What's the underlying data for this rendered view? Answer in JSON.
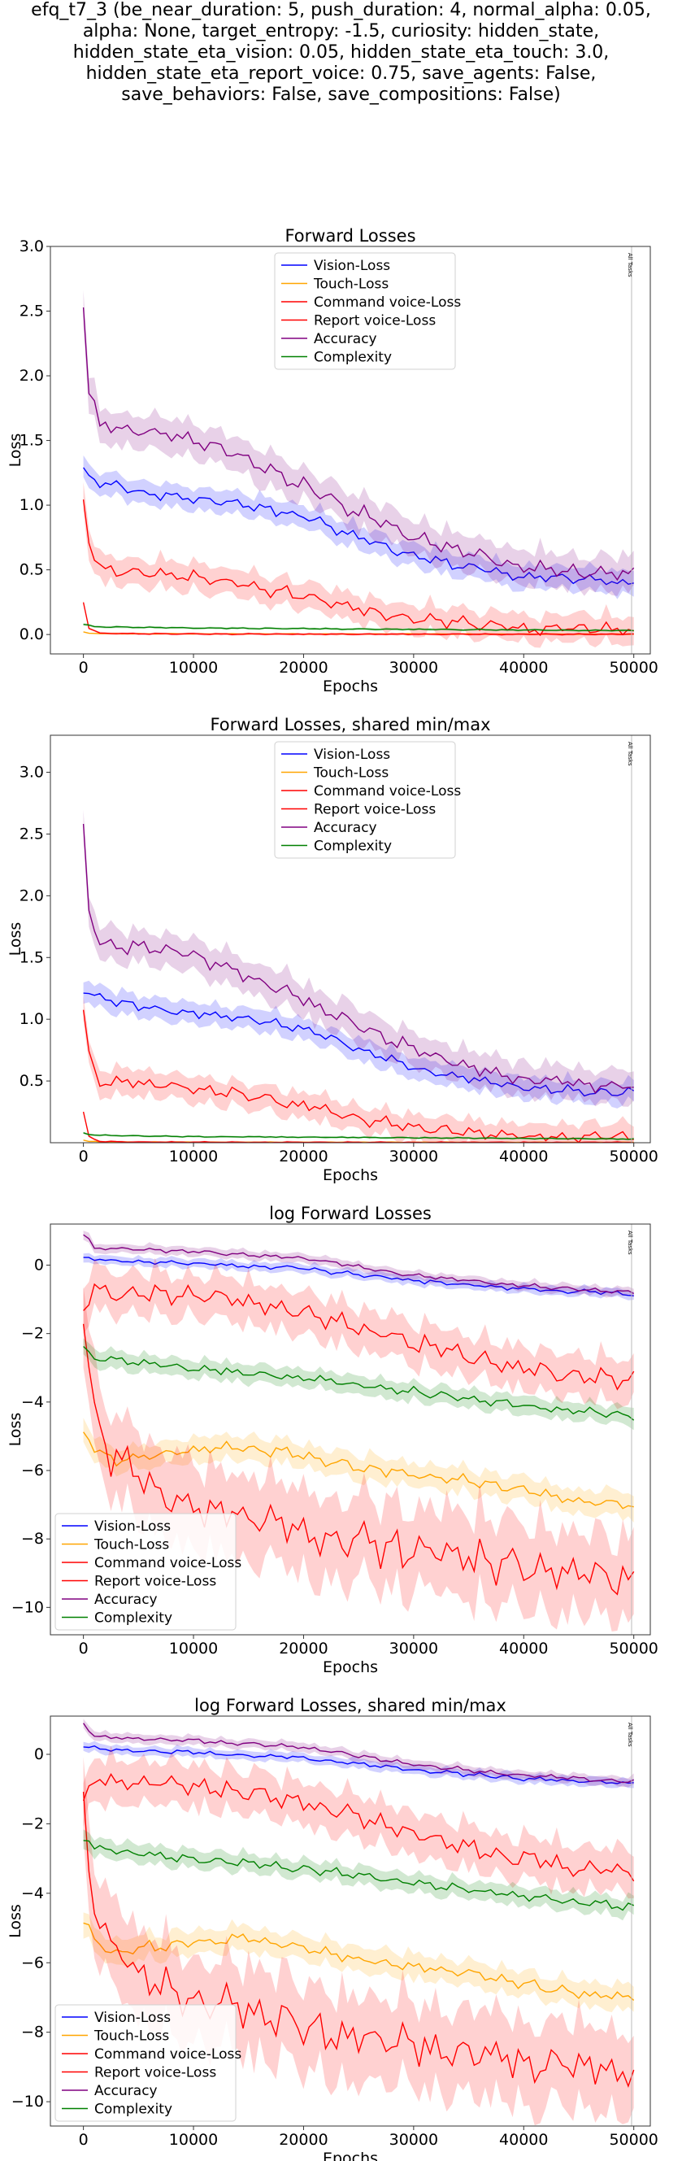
{
  "suptitle_lines": [
    "efq_t7_3 (be_near_duration: 5, push_duration: 4, normal_alpha: 0.05,",
    "alpha: None, target_entropy: -1.5, curiosity: hidden_state,",
    "hidden_state_eta_vision: 0.05, hidden_state_eta_touch: 3.0,",
    "hidden_state_eta_report_voice: 0.75, save_agents: False,",
    "save_behaviors: False, save_compositions: False)"
  ],
  "series_colors": {
    "Vision-Loss": "#0000ff",
    "Touch-Loss": "#ffa500",
    "Command voice-Loss": "#ff0000",
    "Report voice-Loss": "#ff0000",
    "Accuracy": "#800080",
    "Complexity": "#008000"
  },
  "chart_data": [
    {
      "type": "line",
      "title": "Forward Losses",
      "xlabel": "Epochs",
      "ylabel": "Loss",
      "xlim": [
        -3000,
        51500
      ],
      "ylim": [
        -0.15,
        3.0
      ],
      "xticks": [
        0,
        10000,
        20000,
        30000,
        40000,
        50000
      ],
      "yticks": [
        0.0,
        0.5,
        1.0,
        1.5,
        2.0,
        2.5,
        3.0
      ],
      "ytick_format": 1,
      "grid": false,
      "legend": "upper center",
      "vline": {
        "x": 49800,
        "label": "All Tasks"
      },
      "series": [
        {
          "name": "Vision-Loss",
          "x": [
            0,
            1000,
            5000,
            10000,
            15000,
            20000,
            25000,
            30000,
            35000,
            40000,
            45000,
            50000
          ],
          "values": [
            1.25,
            1.2,
            1.1,
            1.05,
            1.0,
            0.92,
            0.75,
            0.6,
            0.52,
            0.45,
            0.42,
            0.4
          ],
          "band": 0.1
        },
        {
          "name": "Touch-Loss",
          "x": [
            0,
            500,
            2000,
            10000,
            20000,
            30000,
            40000,
            50000
          ],
          "values": [
            0.02,
            0.01,
            0.006,
            0.005,
            0.004,
            0.004,
            0.003,
            0.003
          ],
          "band": 0.005
        },
        {
          "name": "Command voice-Loss",
          "x": [
            0,
            500,
            1500,
            5000,
            10000,
            15000,
            20000,
            25000,
            30000,
            35000,
            40000,
            45000,
            50000
          ],
          "values": [
            1.05,
            0.7,
            0.5,
            0.48,
            0.45,
            0.38,
            0.3,
            0.2,
            0.12,
            0.08,
            0.05,
            0.05,
            0.04
          ],
          "band": 0.12
        },
        {
          "name": "Report voice-Loss",
          "x": [
            0,
            500,
            1500,
            5000,
            20000,
            50000
          ],
          "values": [
            0.25,
            0.05,
            0.01,
            0.005,
            0.003,
            0.002
          ],
          "band": 0.01
        },
        {
          "name": "Accuracy",
          "x": [
            0,
            500,
            1500,
            5000,
            10000,
            15000,
            20000,
            25000,
            30000,
            35000,
            40000,
            45000,
            50000
          ],
          "values": [
            2.55,
            1.9,
            1.62,
            1.58,
            1.52,
            1.35,
            1.15,
            0.95,
            0.75,
            0.62,
            0.52,
            0.48,
            0.45
          ],
          "band": 0.15
        },
        {
          "name": "Complexity",
          "x": [
            0,
            1000,
            5000,
            10000,
            20000,
            30000,
            40000,
            50000
          ],
          "values": [
            0.08,
            0.06,
            0.055,
            0.05,
            0.045,
            0.04,
            0.035,
            0.03
          ],
          "band": 0.01
        }
      ]
    },
    {
      "type": "line",
      "title": "Forward Losses, shared min/max",
      "xlabel": "Epochs",
      "ylabel": "Loss",
      "xlim": [
        -3000,
        51500
      ],
      "ylim": [
        0.0,
        3.3
      ],
      "xticks": [
        0,
        10000,
        20000,
        30000,
        40000,
        50000
      ],
      "yticks": [
        0.5,
        1.0,
        1.5,
        2.0,
        2.5,
        3.0
      ],
      "ytick_format": 1,
      "grid": false,
      "legend": "upper center",
      "vline": {
        "x": 49800,
        "label": "All Tasks"
      },
      "series": [
        {
          "name": "Vision-Loss",
          "x": [
            0,
            1000,
            5000,
            10000,
            15000,
            20000,
            25000,
            30000,
            35000,
            40000,
            45000,
            50000
          ],
          "values": [
            1.25,
            1.2,
            1.1,
            1.05,
            1.0,
            0.92,
            0.75,
            0.6,
            0.52,
            0.45,
            0.42,
            0.4
          ],
          "band": 0.1
        },
        {
          "name": "Touch-Loss",
          "x": [
            0,
            500,
            2000,
            10000,
            20000,
            30000,
            40000,
            50000
          ],
          "values": [
            0.02,
            0.01,
            0.006,
            0.005,
            0.004,
            0.004,
            0.003,
            0.003
          ],
          "band": 0.005
        },
        {
          "name": "Command voice-Loss",
          "x": [
            0,
            500,
            1500,
            5000,
            10000,
            15000,
            20000,
            25000,
            30000,
            35000,
            40000,
            45000,
            50000
          ],
          "values": [
            1.05,
            0.7,
            0.5,
            0.48,
            0.45,
            0.38,
            0.3,
            0.2,
            0.12,
            0.08,
            0.05,
            0.05,
            0.04
          ],
          "band": 0.12
        },
        {
          "name": "Report voice-Loss",
          "x": [
            0,
            500,
            1500,
            5000,
            20000,
            50000
          ],
          "values": [
            0.25,
            0.05,
            0.01,
            0.005,
            0.003,
            0.002
          ],
          "band": 0.01
        },
        {
          "name": "Accuracy",
          "x": [
            0,
            500,
            1500,
            5000,
            10000,
            15000,
            20000,
            25000,
            30000,
            35000,
            40000,
            45000,
            50000
          ],
          "values": [
            2.55,
            1.9,
            1.62,
            1.58,
            1.52,
            1.35,
            1.15,
            0.95,
            0.75,
            0.62,
            0.52,
            0.48,
            0.45
          ],
          "band": 0.15
        },
        {
          "name": "Complexity",
          "x": [
            0,
            1000,
            5000,
            10000,
            20000,
            30000,
            40000,
            50000
          ],
          "values": [
            0.08,
            0.06,
            0.055,
            0.05,
            0.045,
            0.04,
            0.035,
            0.03
          ],
          "band": 0.01
        }
      ]
    },
    {
      "type": "line",
      "title": "log Forward Losses",
      "xlabel": "Epochs",
      "ylabel": "Loss",
      "xlim": [
        -3000,
        51500
      ],
      "ylim": [
        -10.8,
        1.2
      ],
      "xticks": [
        0,
        10000,
        20000,
        30000,
        40000,
        50000
      ],
      "yticks": [
        -10,
        -8,
        -6,
        -4,
        -2,
        0
      ],
      "ytick_format": 0,
      "grid": false,
      "legend": "lower left",
      "vline": {
        "x": 49800,
        "label": "All Tasks"
      },
      "series": [
        {
          "name": "Vision-Loss",
          "x": [
            0,
            2000,
            10000,
            20000,
            30000,
            40000,
            50000
          ],
          "values": [
            0.2,
            0.15,
            0.05,
            -0.1,
            -0.45,
            -0.7,
            -0.85
          ],
          "band": 0.15
        },
        {
          "name": "Touch-Loss",
          "x": [
            0,
            1000,
            2500,
            5000,
            10000,
            15000,
            20000,
            25000,
            30000,
            35000,
            40000,
            45000,
            50000
          ],
          "values": [
            -4.9,
            -5.3,
            -5.7,
            -5.6,
            -5.4,
            -5.3,
            -5.6,
            -5.9,
            -6.1,
            -6.3,
            -6.6,
            -6.9,
            -7.0
          ],
          "band": 0.4
        },
        {
          "name": "Command voice-Loss",
          "x": [
            0,
            1000,
            2500,
            5000,
            10000,
            15000,
            20000,
            25000,
            30000,
            35000,
            40000,
            45000,
            50000
          ],
          "values": [
            -1.4,
            -0.6,
            -0.8,
            -0.8,
            -0.9,
            -1.1,
            -1.4,
            -1.8,
            -2.3,
            -2.7,
            -3.0,
            -3.3,
            -3.3
          ],
          "band": 0.7
        },
        {
          "name": "Report voice-Loss",
          "x": [
            0,
            1000,
            2500,
            5000,
            7500,
            10000,
            15000,
            20000,
            25000,
            30000,
            35000,
            40000,
            45000,
            50000
          ],
          "values": [
            -1.5,
            -4.5,
            -5.5,
            -6.3,
            -6.8,
            -7.0,
            -7.4,
            -7.8,
            -8.1,
            -8.4,
            -8.6,
            -8.8,
            -9.0,
            -9.2
          ],
          "band": 1.4
        },
        {
          "name": "Accuracy",
          "x": [
            0,
            1000,
            5000,
            10000,
            20000,
            30000,
            40000,
            50000
          ],
          "values": [
            0.9,
            0.5,
            0.45,
            0.4,
            0.2,
            -0.3,
            -0.6,
            -0.8
          ],
          "band": 0.15
        },
        {
          "name": "Complexity",
          "x": [
            0,
            1000,
            5000,
            10000,
            20000,
            30000,
            40000,
            50000
          ],
          "values": [
            -2.4,
            -2.7,
            -2.85,
            -3.0,
            -3.3,
            -3.7,
            -4.1,
            -4.4
          ],
          "band": 0.3
        }
      ]
    },
    {
      "type": "line",
      "title": "log Forward Losses, shared min/max",
      "xlabel": "Epochs",
      "ylabel": "Loss",
      "xlim": [
        -3000,
        51500
      ],
      "ylim": [
        -10.7,
        1.1
      ],
      "xticks": [
        0,
        10000,
        20000,
        30000,
        40000,
        50000
      ],
      "yticks": [
        -10,
        -8,
        -6,
        -4,
        -2,
        0
      ],
      "ytick_format": 0,
      "grid": false,
      "legend": "lower left",
      "vline": {
        "x": 49800,
        "label": "All Tasks"
      },
      "series": [
        {
          "name": "Vision-Loss",
          "x": [
            0,
            2000,
            10000,
            20000,
            30000,
            40000,
            50000
          ],
          "values": [
            0.2,
            0.15,
            0.05,
            -0.1,
            -0.45,
            -0.7,
            -0.85
          ],
          "band": 0.15
        },
        {
          "name": "Touch-Loss",
          "x": [
            0,
            1000,
            2500,
            5000,
            10000,
            15000,
            20000,
            25000,
            30000,
            35000,
            40000,
            45000,
            50000
          ],
          "values": [
            -4.9,
            -5.3,
            -5.7,
            -5.6,
            -5.4,
            -5.3,
            -5.6,
            -5.9,
            -6.1,
            -6.3,
            -6.6,
            -6.9,
            -7.0
          ],
          "band": 0.4
        },
        {
          "name": "Command voice-Loss",
          "x": [
            0,
            1000,
            2500,
            5000,
            10000,
            15000,
            20000,
            25000,
            30000,
            35000,
            40000,
            45000,
            50000
          ],
          "values": [
            -1.4,
            -0.6,
            -0.8,
            -0.8,
            -0.9,
            -1.1,
            -1.4,
            -1.8,
            -2.3,
            -2.7,
            -3.0,
            -3.3,
            -3.3
          ],
          "band": 0.7
        },
        {
          "name": "Report voice-Loss",
          "x": [
            0,
            1000,
            2500,
            5000,
            7500,
            10000,
            15000,
            20000,
            25000,
            30000,
            35000,
            40000,
            45000,
            50000
          ],
          "values": [
            -1.5,
            -4.5,
            -5.5,
            -6.3,
            -6.8,
            -7.0,
            -7.4,
            -7.8,
            -8.1,
            -8.4,
            -8.6,
            -8.8,
            -9.0,
            -9.2
          ],
          "band": 1.4
        },
        {
          "name": "Accuracy",
          "x": [
            0,
            1000,
            5000,
            10000,
            20000,
            30000,
            40000,
            50000
          ],
          "values": [
            0.9,
            0.5,
            0.45,
            0.4,
            0.2,
            -0.3,
            -0.6,
            -0.8
          ],
          "band": 0.15
        },
        {
          "name": "Complexity",
          "x": [
            0,
            1000,
            5000,
            10000,
            20000,
            30000,
            40000,
            50000
          ],
          "values": [
            -2.4,
            -2.7,
            -2.85,
            -3.0,
            -3.3,
            -3.7,
            -4.1,
            -4.4
          ],
          "band": 0.3
        }
      ]
    }
  ]
}
